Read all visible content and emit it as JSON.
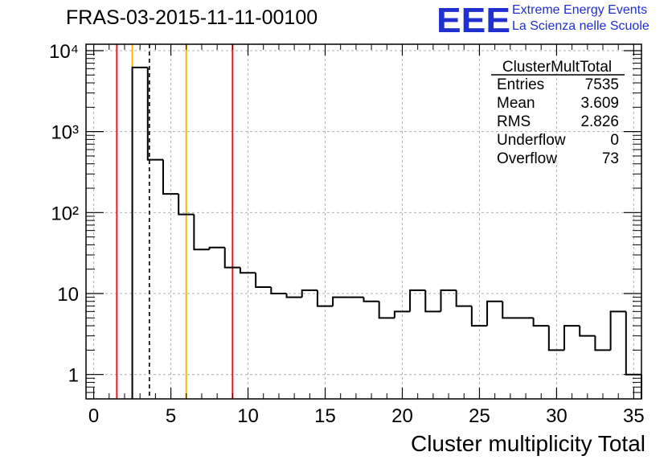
{
  "header": {
    "title": "FRAS-03-2015-11-11-00100",
    "logo_letters": "EEE",
    "logo_line1": "Extreme Energy Events",
    "logo_line2": "La Scienza nelle Scuole"
  },
  "colors": {
    "red_lines": "#e8171e",
    "yellow_lines": "#f5b800",
    "logo_blue": "#1f2fd0",
    "histogram": "#000000",
    "grid": "#b0b0b0"
  },
  "chart_data": {
    "type": "histogram",
    "xlabel": "Cluster multiplicity Total",
    "ylabel": "",
    "xlim": [
      -0.5,
      35.5
    ],
    "ylim": [
      0.5,
      12000
    ],
    "y_scale": "log",
    "grid": true,
    "x_ticks": [
      0,
      5,
      10,
      15,
      20,
      25,
      30,
      35
    ],
    "x_tick_labels": [
      "0",
      "5",
      "10",
      "15",
      "20",
      "25",
      "30",
      "35"
    ],
    "y_ticks": [
      1,
      10,
      100,
      1000,
      10000
    ],
    "y_tick_labels": [
      "1",
      "10",
      "10²",
      "10³",
      "10⁴"
    ],
    "bins": [
      {
        "low": 2.5,
        "high": 3.5,
        "value": 6200
      },
      {
        "low": 3.5,
        "high": 4.5,
        "value": 450
      },
      {
        "low": 4.5,
        "high": 5.5,
        "value": 170
      },
      {
        "low": 5.5,
        "high": 6.5,
        "value": 95
      },
      {
        "low": 6.5,
        "high": 7.5,
        "value": 35
      },
      {
        "low": 7.5,
        "high": 8.5,
        "value": 37
      },
      {
        "low": 8.5,
        "high": 9.5,
        "value": 21
      },
      {
        "low": 9.5,
        "high": 10.5,
        "value": 18
      },
      {
        "low": 10.5,
        "high": 11.5,
        "value": 12
      },
      {
        "low": 11.5,
        "high": 12.5,
        "value": 10
      },
      {
        "low": 12.5,
        "high": 13.5,
        "value": 9
      },
      {
        "low": 13.5,
        "high": 14.5,
        "value": 11
      },
      {
        "low": 14.5,
        "high": 15.5,
        "value": 7
      },
      {
        "low": 15.5,
        "high": 16.5,
        "value": 9
      },
      {
        "low": 16.5,
        "high": 17.5,
        "value": 9
      },
      {
        "low": 17.5,
        "high": 18.5,
        "value": 8
      },
      {
        "low": 18.5,
        "high": 19.5,
        "value": 5
      },
      {
        "low": 19.5,
        "high": 20.5,
        "value": 6
      },
      {
        "low": 20.5,
        "high": 21.5,
        "value": 11
      },
      {
        "low": 21.5,
        "high": 22.5,
        "value": 6
      },
      {
        "low": 22.5,
        "high": 23.5,
        "value": 11
      },
      {
        "low": 23.5,
        "high": 24.5,
        "value": 7
      },
      {
        "low": 24.5,
        "high": 25.5,
        "value": 4
      },
      {
        "low": 25.5,
        "high": 26.5,
        "value": 8
      },
      {
        "low": 26.5,
        "high": 27.5,
        "value": 5
      },
      {
        "low": 27.5,
        "high": 28.5,
        "value": 5
      },
      {
        "low": 28.5,
        "high": 29.5,
        "value": 4
      },
      {
        "low": 29.5,
        "high": 30.5,
        "value": 2
      },
      {
        "low": 30.5,
        "high": 31.5,
        "value": 4
      },
      {
        "low": 31.5,
        "high": 32.5,
        "value": 3
      },
      {
        "low": 32.5,
        "high": 33.5,
        "value": 2
      },
      {
        "low": 33.5,
        "high": 34.5,
        "value": 6
      },
      {
        "low": 34.5,
        "high": 35.5,
        "value": 1
      }
    ],
    "vertical_lines": [
      {
        "x": 1.5,
        "color": "#e8171e",
        "style": "solid"
      },
      {
        "x": 2.5,
        "color": "#f5b800",
        "style": "solid"
      },
      {
        "x": 3.609,
        "color": "#000000",
        "style": "dashed"
      },
      {
        "x": 6.0,
        "color": "#f5b800",
        "style": "solid"
      },
      {
        "x": 9.0,
        "color": "#e8171e",
        "style": "solid"
      }
    ],
    "stats_box": {
      "title": "ClusterMultTotal",
      "rows": [
        {
          "label": "Entries",
          "value": "7535"
        },
        {
          "label": "Mean",
          "value": "3.609"
        },
        {
          "label": "RMS",
          "value": "2.826"
        },
        {
          "label": "Underflow",
          "value": "0"
        },
        {
          "label": "Overflow",
          "value": "73"
        }
      ]
    }
  }
}
